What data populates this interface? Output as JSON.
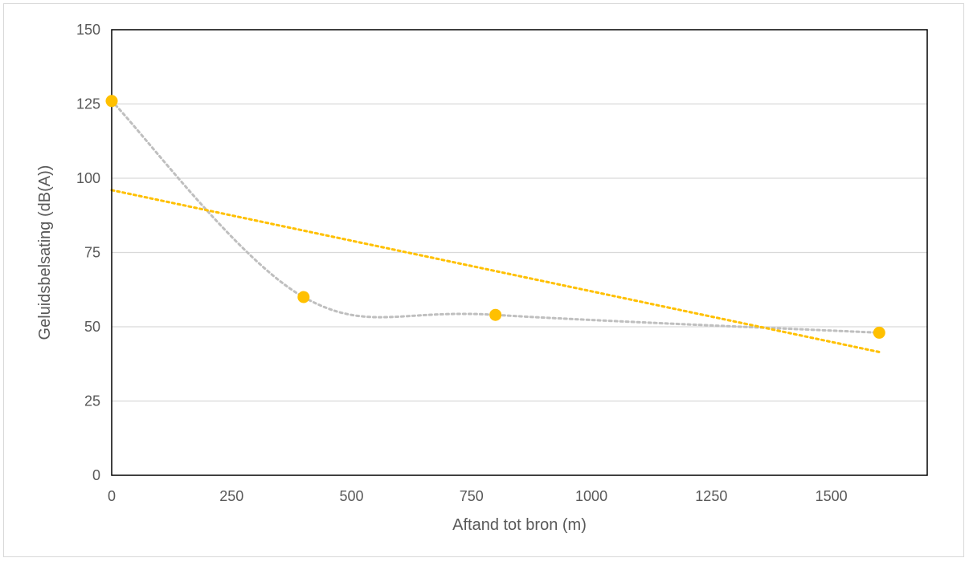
{
  "chart_data": {
    "type": "scatter",
    "title": "",
    "xlabel": "Aftand tot bron (m)",
    "ylabel": "Geluidsbelsating (dB(A))",
    "xlim": [
      0,
      1700
    ],
    "ylim": [
      0,
      150
    ],
    "x_ticks": [
      0,
      250,
      500,
      750,
      1000,
      1250,
      1500
    ],
    "y_ticks": [
      0,
      25,
      50,
      75,
      100,
      125,
      150
    ],
    "grid": "horizontal",
    "legend": "none",
    "series": [
      {
        "x": [
          0,
          400,
          800,
          1600
        ],
        "y": [
          126,
          60,
          54,
          48
        ],
        "color": "#FFC000",
        "marker": "circle",
        "smooth_line": true,
        "smooth_line_color": "#BFBFBF",
        "smooth_line_style": "dotted"
      }
    ],
    "trendline": {
      "type": "linear",
      "color": "#FFC000",
      "style": "dotted",
      "x_range": [
        0,
        1600
      ],
      "y_values": [
        96,
        41.5
      ]
    }
  }
}
